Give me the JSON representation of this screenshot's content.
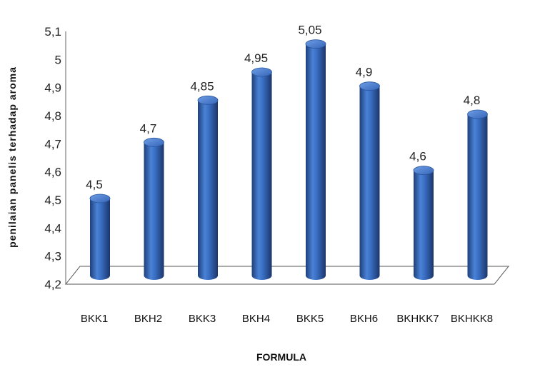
{
  "chart_data": {
    "type": "bar",
    "categories": [
      "BKK1",
      "BKH2",
      "BKK3",
      "BKH4",
      "BKK5",
      "BKH6",
      "BKHKK7",
      "BKHKK8"
    ],
    "values": [
      4.5,
      4.7,
      4.85,
      4.95,
      5.05,
      4.9,
      4.6,
      4.8
    ],
    "data_labels": [
      "4,5",
      "4,7",
      "4,85",
      "4,95",
      "5,05",
      "4,9",
      "4,6",
      "4,8"
    ],
    "xlabel": "FORMULA",
    "ylabel": "penilaian panelis terhadap aroma",
    "ylim": [
      4.2,
      5.1
    ],
    "y_ticks": [
      "4,2",
      "4,3",
      "4,4",
      "4,5",
      "4,6",
      "4,7",
      "4,8",
      "4,9",
      "5",
      "5,1"
    ],
    "bar_color": "#3a6fc4",
    "grid": false,
    "legend": "none",
    "style": "3d-cylinder"
  }
}
